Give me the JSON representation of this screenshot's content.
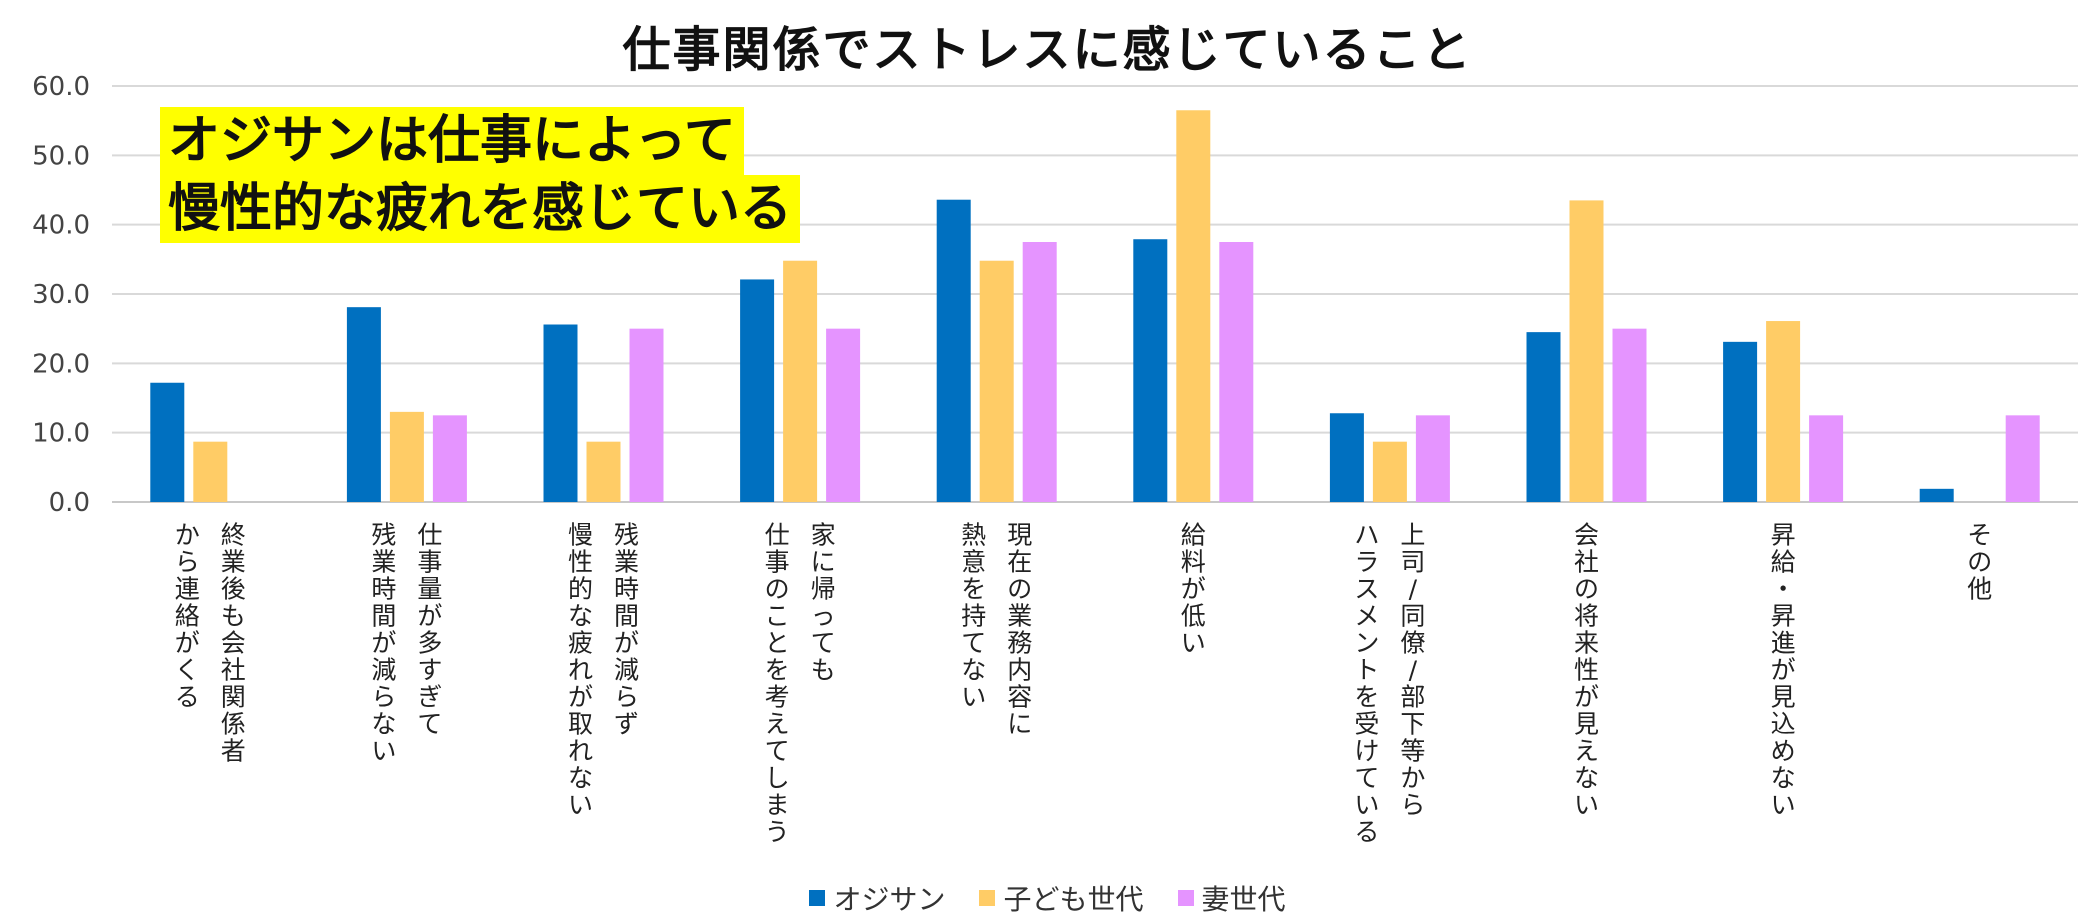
{
  "chart_data": {
    "type": "bar",
    "title": "仕事関係でストレスに感じていること",
    "annotation": [
      "オジサンは仕事によって",
      "慢性的な疲れを感じている"
    ],
    "ylim": [
      0,
      60
    ],
    "yticks": [
      "0.0",
      "10.0",
      "20.0",
      "30.0",
      "40.0",
      "50.0",
      "60.0"
    ],
    "categories": [
      [
        "終業後も会社関係者",
        "から連絡がくる"
      ],
      [
        "仕事量が多すぎて",
        "残業時間が減らない"
      ],
      [
        "残業時間が減らず",
        "慢性的な疲れが取れない"
      ],
      [
        "家に帰っても",
        "仕事のことを考えてしまう"
      ],
      [
        "現在の業務内容に",
        "熱意を持てない"
      ],
      [
        "給料が低い"
      ],
      [
        "上司/同僚/部下等から",
        "ハラスメントを受けている"
      ],
      [
        "会社の将来性が見えない"
      ],
      [
        "昇給・昇進が見込めない"
      ],
      [
        "その他"
      ]
    ],
    "series": [
      {
        "name": "オジサン",
        "color": "#0070c0",
        "values": [
          17.2,
          28.1,
          25.6,
          32.1,
          43.6,
          37.9,
          12.8,
          24.5,
          23.1,
          1.9
        ]
      },
      {
        "name": "子ども世代",
        "color": "#ffcc66",
        "values": [
          8.7,
          13.0,
          8.7,
          34.8,
          34.8,
          56.5,
          8.7,
          43.5,
          26.1,
          0
        ]
      },
      {
        "name": "妻世代",
        "color": "#e594ff",
        "values": [
          0,
          12.5,
          25.0,
          25.0,
          37.5,
          37.5,
          12.5,
          25.0,
          12.5,
          12.5
        ]
      }
    ],
    "legend_position": "bottom"
  }
}
